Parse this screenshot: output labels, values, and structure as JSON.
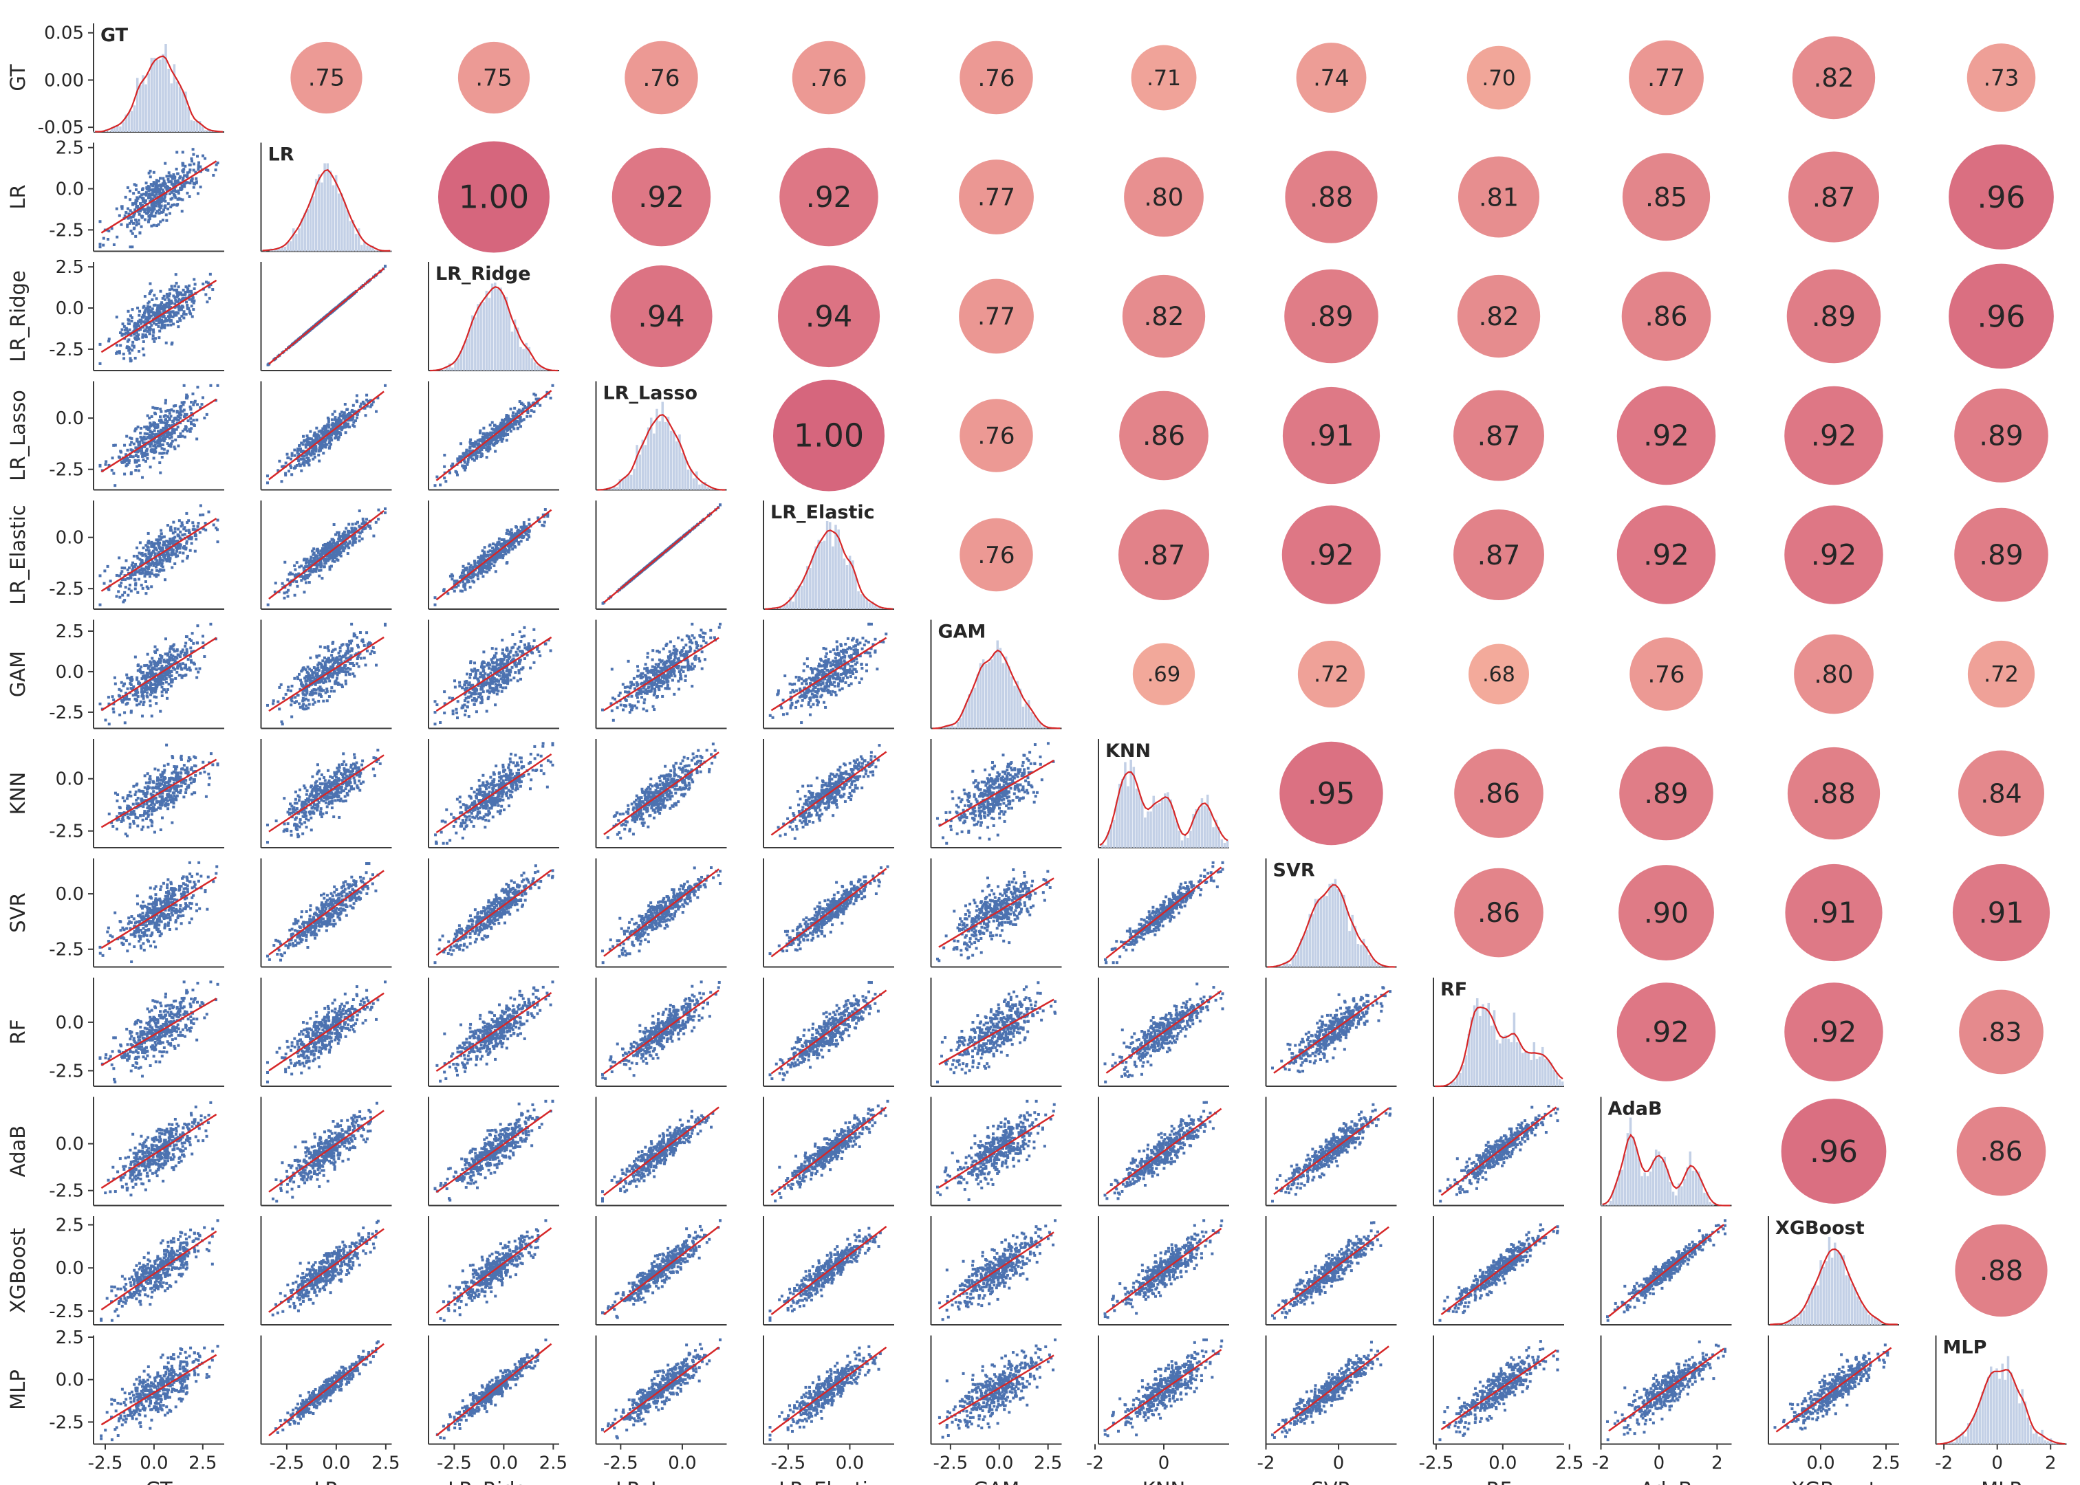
{
  "chart_data": {
    "type": "scatter",
    "variables": [
      "GT",
      "LR",
      "LR_Ridge",
      "LR_Lasso",
      "LR_Elastic",
      "GAM",
      "KNN",
      "SVR",
      "RF",
      "AdaB",
      "XGBoost",
      "MLP"
    ],
    "correlation_matrix": [
      [
        1.0,
        0.75,
        0.75,
        0.76,
        0.76,
        0.76,
        0.71,
        0.74,
        0.7,
        0.77,
        0.82,
        0.73
      ],
      [
        0.75,
        1.0,
        1.0,
        0.92,
        0.92,
        0.77,
        0.8,
        0.88,
        0.81,
        0.85,
        0.87,
        0.96
      ],
      [
        0.75,
        1.0,
        1.0,
        0.94,
        0.94,
        0.77,
        0.82,
        0.89,
        0.82,
        0.86,
        0.89,
        0.96
      ],
      [
        0.76,
        0.92,
        0.94,
        1.0,
        1.0,
        0.76,
        0.86,
        0.91,
        0.87,
        0.92,
        0.92,
        0.89
      ],
      [
        0.76,
        0.92,
        0.94,
        1.0,
        1.0,
        0.76,
        0.87,
        0.92,
        0.87,
        0.92,
        0.92,
        0.89
      ],
      [
        0.76,
        0.77,
        0.77,
        0.76,
        0.76,
        1.0,
        0.69,
        0.72,
        0.68,
        0.76,
        0.8,
        0.72
      ],
      [
        0.71,
        0.8,
        0.82,
        0.86,
        0.87,
        0.69,
        1.0,
        0.95,
        0.86,
        0.89,
        0.88,
        0.84
      ],
      [
        0.74,
        0.88,
        0.89,
        0.91,
        0.92,
        0.72,
        0.95,
        1.0,
        0.86,
        0.9,
        0.91,
        0.91
      ],
      [
        0.7,
        0.81,
        0.82,
        0.87,
        0.87,
        0.68,
        0.86,
        0.86,
        1.0,
        0.92,
        0.92,
        0.83
      ],
      [
        0.77,
        0.85,
        0.86,
        0.92,
        0.92,
        0.76,
        0.89,
        0.9,
        0.92,
        1.0,
        0.96,
        0.86
      ],
      [
        0.82,
        0.87,
        0.89,
        0.92,
        0.92,
        0.8,
        0.88,
        0.91,
        0.92,
        0.96,
        1.0,
        0.88
      ],
      [
        0.73,
        0.96,
        0.96,
        0.89,
        0.89,
        0.72,
        0.84,
        0.91,
        0.83,
        0.86,
        0.88,
        1.0
      ]
    ],
    "correlation_labels": [
      [
        ".75",
        ".75",
        ".76",
        ".76",
        ".76",
        ".71",
        ".74",
        ".70",
        ".77",
        ".82",
        ".73"
      ],
      [
        "1.00",
        ".92",
        ".92",
        ".77",
        ".80",
        ".88",
        ".81",
        ".85",
        ".87",
        ".96"
      ],
      [
        ".94",
        ".94",
        ".77",
        ".82",
        ".89",
        ".82",
        ".86",
        ".89",
        ".96"
      ],
      [
        "1.00",
        ".76",
        ".86",
        ".91",
        ".87",
        ".92",
        ".92",
        ".89"
      ],
      [
        ".76",
        ".87",
        ".92",
        ".87",
        ".92",
        ".92",
        ".89"
      ],
      [
        ".69",
        ".72",
        ".68",
        ".76",
        ".80",
        ".72"
      ],
      [
        ".95",
        ".86",
        ".89",
        ".88",
        ".84"
      ],
      [
        ".86",
        ".90",
        ".91",
        ".91"
      ],
      [
        ".92",
        ".92",
        ".83"
      ],
      [
        ".96",
        ".86"
      ],
      [
        ".88"
      ]
    ],
    "x_ticks": [
      [
        "-2.5",
        "0.0",
        "2.5"
      ],
      [
        "-2.5",
        "0.0",
        "2.5"
      ],
      [
        "-2.5",
        "0.0",
        "2.5"
      ],
      [
        "-2.5",
        "0.0"
      ],
      [
        "-2.5",
        "0.0"
      ],
      [
        "-2.5",
        "0.0",
        "2.5"
      ],
      [
        "-2",
        "0"
      ],
      [
        "-2",
        "0"
      ],
      [
        "-2.5",
        "0.0",
        "2.5"
      ],
      [
        "-2",
        "0",
        "2"
      ],
      [
        "0.0",
        "2.5"
      ],
      [
        "-2",
        "0",
        "2"
      ]
    ],
    "x_tick_values": [
      [
        -2.5,
        0,
        2.5
      ],
      [
        -2.5,
        0,
        2.5
      ],
      [
        -2.5,
        0,
        2.5
      ],
      [
        -2.5,
        0
      ],
      [
        -2.5,
        0
      ],
      [
        -2.5,
        0,
        2.5
      ],
      [
        -2,
        0
      ],
      [
        -2,
        0
      ],
      [
        -2.5,
        0,
        2.5
      ],
      [
        -2,
        0,
        2
      ],
      [
        0,
        2.5
      ],
      [
        -2,
        0,
        2
      ]
    ],
    "x_ranges": [
      [
        -3.1,
        3.6
      ],
      [
        -3.8,
        2.8
      ],
      [
        -3.8,
        2.8
      ],
      [
        -3.5,
        1.8
      ],
      [
        -3.5,
        1.8
      ],
      [
        -3.5,
        3.2
      ],
      [
        -1.9,
        1.9
      ],
      [
        -2.0,
        1.6
      ],
      [
        -2.6,
        2.3
      ],
      [
        -2.0,
        2.5
      ],
      [
        -2.0,
        3.0
      ],
      [
        -2.3,
        2.6
      ]
    ],
    "y_ticks": [
      [
        "0.05",
        "0.00",
        "-0.05"
      ],
      [
        "2.5",
        "0.0",
        "-2.5"
      ],
      [
        "2.5",
        "0.0",
        "-2.5"
      ],
      [
        "0.0",
        "-2.5"
      ],
      [
        "0.0",
        "-2.5"
      ],
      [
        "2.5",
        "0.0",
        "-2.5"
      ],
      [
        "0.0",
        "-2.5"
      ],
      [
        "0.0",
        "-2.5"
      ],
      [
        "0.0",
        "-2.5"
      ],
      [
        "0.0",
        "-2.5"
      ],
      [
        "2.5",
        "0.0",
        "-2.5"
      ],
      [
        "2.5",
        "0.0",
        "-2.5"
      ]
    ],
    "y_tick_values": [
      [
        0.05,
        0,
        -0.05
      ],
      [
        2.5,
        0,
        -2.5
      ],
      [
        2.5,
        0,
        -2.5
      ],
      [
        0,
        -2.5
      ],
      [
        0,
        -2.5
      ],
      [
        2.5,
        0,
        -2.5
      ],
      [
        0,
        -2.5
      ],
      [
        0,
        -2.5
      ],
      [
        0,
        -2.5
      ],
      [
        0,
        -2.5
      ],
      [
        2.5,
        0,
        -2.5
      ],
      [
        2.5,
        0,
        -2.5
      ]
    ],
    "y_ranges": [
      [
        -0.055,
        0.06
      ],
      [
        -3.8,
        2.8
      ],
      [
        -3.8,
        2.8
      ],
      [
        -3.5,
        1.8
      ],
      [
        -3.5,
        1.8
      ],
      [
        -3.5,
        3.2
      ],
      [
        -3.3,
        1.9
      ],
      [
        -3.3,
        1.6
      ],
      [
        -3.3,
        2.3
      ],
      [
        -3.3,
        2.5
      ],
      [
        -3.3,
        3.0
      ],
      [
        -3.8,
        2.6
      ]
    ],
    "colors": {
      "points": "#4c72b0",
      "fit_line": "#d62728",
      "hist_bars": "#c3d0e6",
      "kde_line": "#d62728",
      "corr_low": "#f2a596",
      "corr_high": "#d45e76",
      "axis": "#3a3a3a",
      "text": "#262626"
    },
    "grid": false,
    "legend": "none"
  }
}
